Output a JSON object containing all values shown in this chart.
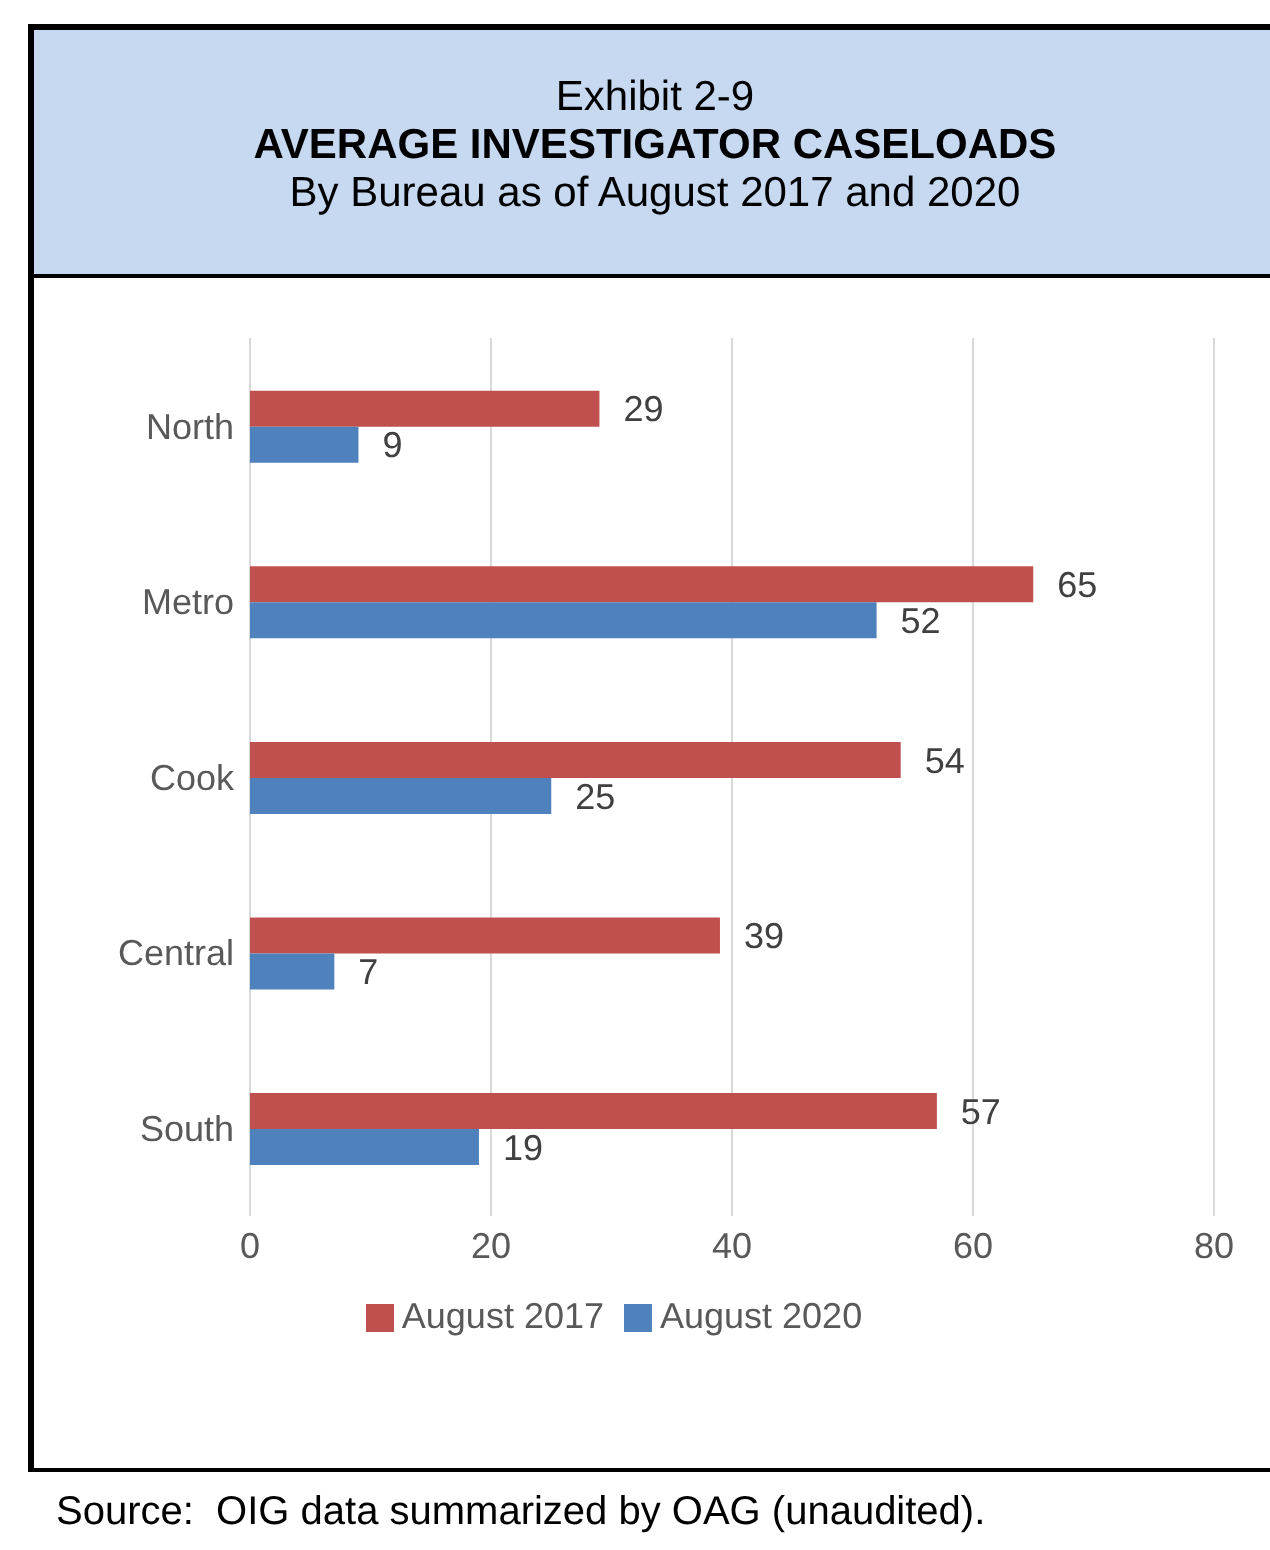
{
  "chart_data": {
    "type": "bar",
    "orientation": "horizontal",
    "title": "AVERAGE INVESTIGATOR CASELOADS",
    "subtitle": "By Bureau as of August 2017 and 2020",
    "annotations": [
      "Exhibit 2-9",
      "Source:  OIG data summarized by OAG (unaudited)."
    ],
    "categories": [
      "North",
      "Metro",
      "Cook",
      "Central",
      "South"
    ],
    "series": [
      {
        "name": "August 2017",
        "color": "#c0504d",
        "values": [
          29,
          65,
          54,
          39,
          57
        ]
      },
      {
        "name": "August 2020",
        "color": "#4f81bd",
        "values": [
          9,
          52,
          25,
          7,
          19
        ]
      }
    ],
    "xlim": [
      0,
      80
    ],
    "xticks": [
      0,
      20,
      40,
      60,
      80
    ],
    "grid": "x",
    "legend": "bottom",
    "data_labels": true
  }
}
